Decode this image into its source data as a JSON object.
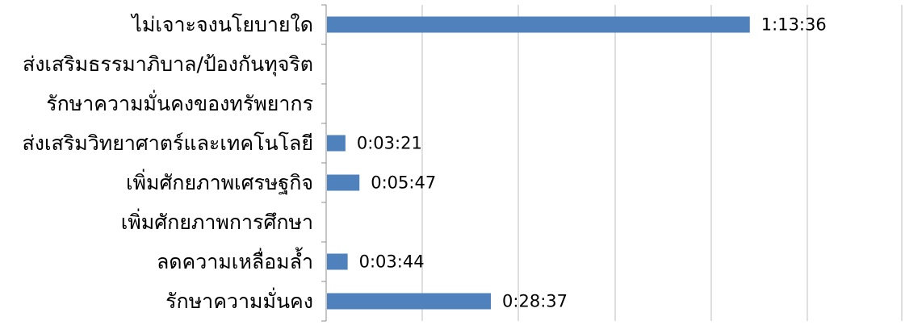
{
  "chart_data": {
    "type": "bar",
    "orientation": "horizontal",
    "title": "",
    "xlabel": "",
    "ylabel": "",
    "x_unit": "seconds",
    "xlim": [
      0,
      6000
    ],
    "grid": true,
    "legend": "none",
    "bar_color": "#4F81BD",
    "categories": [
      "ไม่เจาะจงนโยบายใด",
      "ส่งเสริมธรรมาภิบาล/ป้องกันทุจริต",
      "รักษาความมั่นคงของทรัพยากร",
      "ส่งเสริมวิทยาศาตร์และเทคโนโลยี",
      "เพิ่มศักยภาพเศรษฐกิจ",
      "เพิ่มศักยภาพการศึกษา",
      "ลดความเหลื่อมล้ำ",
      "รักษาความมั่นคง"
    ],
    "values": [
      4416,
      0,
      0,
      201,
      347,
      0,
      224,
      1717
    ],
    "data_labels": [
      "1:13:36",
      "",
      "",
      "0:03:21",
      "0:05:47",
      "",
      "0:03:44",
      "0:28:37"
    ]
  }
}
